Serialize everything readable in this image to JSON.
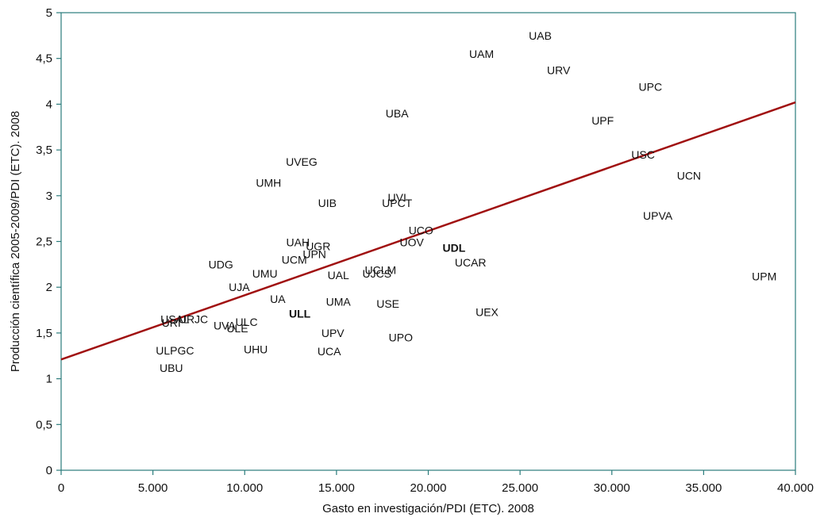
{
  "chart_data": {
    "type": "scatter",
    "title": "",
    "xlabel": "Gasto en investigación/PDI (ETC). 2008",
    "ylabel": "Producción científica 2005-2009/PDI (ETC). 2008",
    "xlim": [
      0,
      40000
    ],
    "ylim": [
      0,
      5
    ],
    "x_ticks": [
      0,
      5000,
      10000,
      15000,
      20000,
      25000,
      30000,
      35000,
      40000
    ],
    "x_tick_labels": [
      "0",
      "5.000",
      "10.000",
      "15.000",
      "20.000",
      "25.000",
      "30.000",
      "35.000",
      "40.000"
    ],
    "y_ticks": [
      0,
      0.5,
      1,
      1.5,
      2,
      2.5,
      3,
      3.5,
      4,
      4.5,
      5
    ],
    "y_tick_labels": [
      "0",
      "0,5",
      "1",
      "1,5",
      "2",
      "2,5",
      "3",
      "3,5",
      "4",
      "4,5",
      "5"
    ],
    "grid": false,
    "trendline": {
      "x": [
        0,
        40000
      ],
      "y": [
        1.21,
        4.02
      ],
      "color": "#a01010"
    },
    "colors": {
      "axis": "#2a7b7b",
      "text": "#111111"
    },
    "points": [
      {
        "label": "UAB",
        "x": 26100,
        "y": 4.75,
        "bold": false
      },
      {
        "label": "UAM",
        "x": 22900,
        "y": 4.55,
        "bold": false
      },
      {
        "label": "URV",
        "x": 27100,
        "y": 4.37,
        "bold": false
      },
      {
        "label": "UPC",
        "x": 32100,
        "y": 4.19,
        "bold": false
      },
      {
        "label": "UBA",
        "x": 18300,
        "y": 3.9,
        "bold": false
      },
      {
        "label": "UPF",
        "x": 29500,
        "y": 3.82,
        "bold": false
      },
      {
        "label": "USC",
        "x": 31700,
        "y": 3.45,
        "bold": false
      },
      {
        "label": "UVEG",
        "x": 13100,
        "y": 3.37,
        "bold": false
      },
      {
        "label": "UCN",
        "x": 34200,
        "y": 3.22,
        "bold": false
      },
      {
        "label": "UMH",
        "x": 11300,
        "y": 3.14,
        "bold": false
      },
      {
        "label": "UVI",
        "x": 18300,
        "y": 2.98,
        "bold": false
      },
      {
        "label": "UIB",
        "x": 14500,
        "y": 2.92,
        "bold": false
      },
      {
        "label": "UPCT",
        "x": 18300,
        "y": 2.92,
        "bold": false
      },
      {
        "label": "UPVA",
        "x": 32500,
        "y": 2.78,
        "bold": false
      },
      {
        "label": "UCO",
        "x": 19600,
        "y": 2.62,
        "bold": false
      },
      {
        "label": "UOV",
        "x": 19100,
        "y": 2.49,
        "bold": false
      },
      {
        "label": "UAH",
        "x": 12900,
        "y": 2.49,
        "bold": false
      },
      {
        "label": "UGR",
        "x": 14000,
        "y": 2.45,
        "bold": false
      },
      {
        "label": "UDL",
        "x": 21400,
        "y": 2.43,
        "bold": true
      },
      {
        "label": "UPN",
        "x": 13800,
        "y": 2.36,
        "bold": false
      },
      {
        "label": "UCM",
        "x": 12700,
        "y": 2.3,
        "bold": false
      },
      {
        "label": "UCAR",
        "x": 22300,
        "y": 2.27,
        "bold": false
      },
      {
        "label": "UDG",
        "x": 8700,
        "y": 2.25,
        "bold": false
      },
      {
        "label": "UCLM",
        "x": 17400,
        "y": 2.19,
        "bold": false
      },
      {
        "label": "UJCS",
        "x": 17200,
        "y": 2.15,
        "bold": false
      },
      {
        "label": "UMU",
        "x": 11100,
        "y": 2.15,
        "bold": false
      },
      {
        "label": "UAL",
        "x": 15100,
        "y": 2.13,
        "bold": false
      },
      {
        "label": "UPM",
        "x": 38300,
        "y": 2.12,
        "bold": false
      },
      {
        "label": "UJA",
        "x": 9700,
        "y": 2.0,
        "bold": false
      },
      {
        "label": "UA",
        "x": 11800,
        "y": 1.87,
        "bold": false
      },
      {
        "label": "UMA",
        "x": 15100,
        "y": 1.84,
        "bold": false
      },
      {
        "label": "USE",
        "x": 17800,
        "y": 1.82,
        "bold": false
      },
      {
        "label": "UEX",
        "x": 23200,
        "y": 1.73,
        "bold": false
      },
      {
        "label": "ULL",
        "x": 13000,
        "y": 1.71,
        "bold": true
      },
      {
        "label": "URJC",
        "x": 7200,
        "y": 1.65,
        "bold": false
      },
      {
        "label": "USAL",
        "x": 6200,
        "y": 1.65,
        "bold": false
      },
      {
        "label": "URI",
        "x": 6000,
        "y": 1.61,
        "bold": false
      },
      {
        "label": "ULC",
        "x": 10100,
        "y": 1.62,
        "bold": false
      },
      {
        "label": "UVA",
        "x": 8900,
        "y": 1.58,
        "bold": false
      },
      {
        "label": "ULE",
        "x": 9600,
        "y": 1.55,
        "bold": false
      },
      {
        "label": "UPV",
        "x": 14800,
        "y": 1.5,
        "bold": false
      },
      {
        "label": "UPO",
        "x": 18500,
        "y": 1.45,
        "bold": false
      },
      {
        "label": "UHU",
        "x": 10600,
        "y": 1.32,
        "bold": false
      },
      {
        "label": "ULPGC",
        "x": 6200,
        "y": 1.31,
        "bold": false
      },
      {
        "label": "UCA",
        "x": 14600,
        "y": 1.3,
        "bold": false
      },
      {
        "label": "UBU",
        "x": 6000,
        "y": 1.12,
        "bold": false
      }
    ]
  }
}
